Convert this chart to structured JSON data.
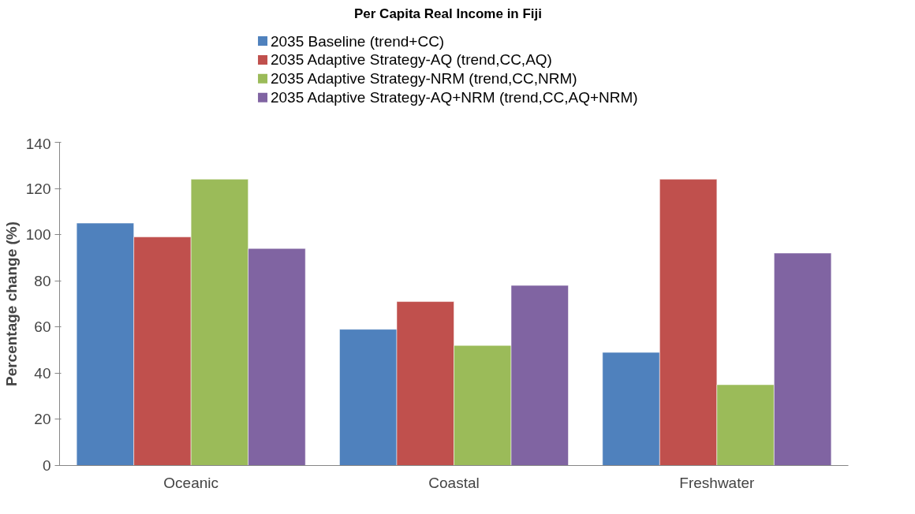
{
  "chart_data": {
    "type": "bar",
    "title": "Per Capita Real Income in Fiji",
    "ylabel": "Percentage change (%)",
    "categories": [
      "Oceanic",
      "Coastal",
      "Freshwater"
    ],
    "series": [
      {
        "name": "2035 Baseline (trend+CC)",
        "color": "#4f81bd",
        "values": [
          105,
          59,
          49
        ]
      },
      {
        "name": "2035 Adaptive Strategy-AQ (trend,CC,AQ)",
        "color": "#c0504d",
        "values": [
          99,
          71,
          124
        ]
      },
      {
        "name": "2035 Adaptive Strategy-NRM (trend,CC,NRM)",
        "color": "#9bbb59",
        "values": [
          124,
          52,
          35
        ]
      },
      {
        "name": "2035 Adaptive Strategy-AQ+NRM (trend,CC,AQ+NRM)",
        "color": "#8064a2",
        "values": [
          94,
          78,
          92
        ]
      }
    ],
    "ylim": [
      0,
      140
    ],
    "yticks": [
      0,
      20,
      40,
      60,
      80,
      100,
      120,
      140
    ],
    "grid": false,
    "legend": "top"
  }
}
